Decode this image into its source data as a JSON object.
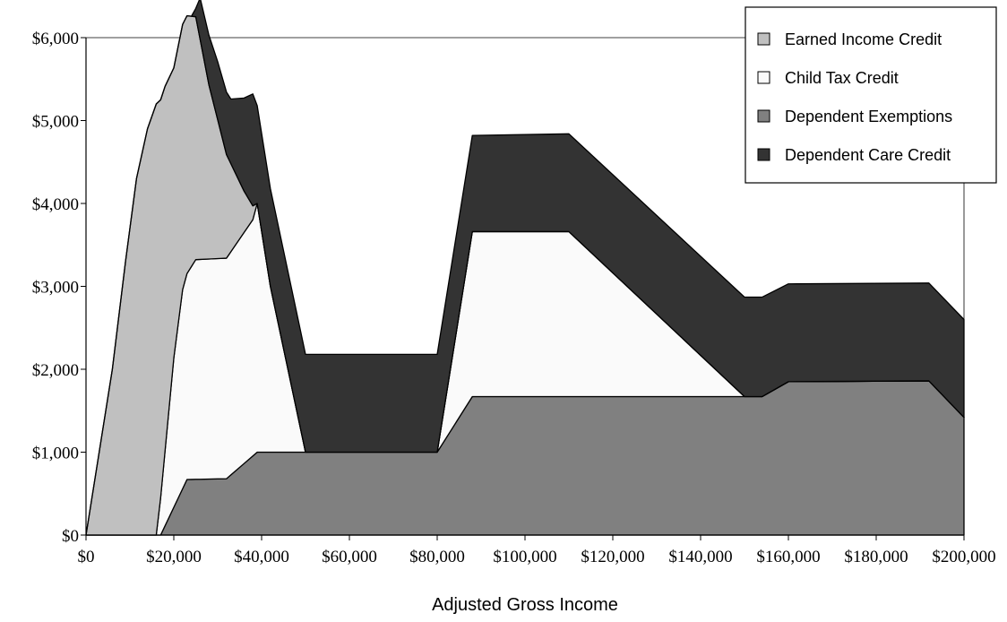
{
  "chart_data": {
    "type": "area",
    "stacking": "stacked",
    "title": "",
    "xlabel": "Adjusted Gross Income",
    "ylabel": "",
    "xlim": [
      0,
      200000
    ],
    "ylim": [
      0,
      6000
    ],
    "x_ticks": [
      0,
      20000,
      40000,
      60000,
      80000,
      100000,
      120000,
      140000,
      160000,
      180000,
      200000
    ],
    "x_tick_labels": [
      "$0",
      "$20,000",
      "$40,000",
      "$60,000",
      "$80,000",
      "$100,000",
      "$120,000",
      "$140,000",
      "$160,000",
      "$180,000",
      "$200,000"
    ],
    "y_ticks": [
      0,
      1000,
      2000,
      3000,
      4000,
      5000,
      6000
    ],
    "y_tick_labels": [
      "$0",
      "$1,000",
      "$2,000",
      "$3,000",
      "$4,000",
      "$5,000",
      "$6,000"
    ],
    "grid": false,
    "legend_position": "top-right",
    "series": [
      {
        "name": "Dependent Exemptions",
        "color": "#808080",
        "points": [
          [
            0,
            0
          ],
          [
            17000,
            0
          ],
          [
            23000,
            670
          ],
          [
            32000,
            680
          ],
          [
            39000,
            1000
          ],
          [
            80000,
            1000
          ],
          [
            88000,
            1670
          ],
          [
            110000,
            1670
          ],
          [
            150000,
            1670
          ],
          [
            154000,
            1670
          ],
          [
            160000,
            1850
          ],
          [
            192000,
            1860
          ],
          [
            200000,
            1420
          ],
          [
            200000,
            0
          ]
        ]
      },
      {
        "name": "Child Tax Credit",
        "color": "#fafafa",
        "points": [
          [
            0,
            0
          ],
          [
            12000,
            0
          ],
          [
            16000,
            0
          ],
          [
            18000,
            900
          ],
          [
            20000,
            1800
          ],
          [
            22000,
            2400
          ],
          [
            25000,
            2650
          ],
          [
            32000,
            2660
          ],
          [
            38000,
            2850
          ],
          [
            39000,
            3000
          ],
          [
            42000,
            2000
          ],
          [
            46000,
            1000
          ],
          [
            50000,
            0
          ],
          [
            80000,
            0
          ],
          [
            88000,
            1990
          ],
          [
            110000,
            1990
          ],
          [
            150000,
            0
          ],
          [
            200000,
            0
          ]
        ]
      },
      {
        "name": "Earned Income Credit",
        "color": "#c0c0c0",
        "points": [
          [
            0,
            0
          ],
          [
            3000,
            1000
          ],
          [
            6000,
            2000
          ],
          [
            9000,
            3300
          ],
          [
            11500,
            4300
          ],
          [
            14000,
            4900
          ],
          [
            16000,
            5200
          ],
          [
            18000,
            4400
          ],
          [
            20000,
            3500
          ],
          [
            22000,
            3200
          ],
          [
            25000,
            2930
          ],
          [
            28000,
            2100
          ],
          [
            32000,
            1250
          ],
          [
            36000,
            500
          ],
          [
            39000,
            0
          ],
          [
            200000,
            0
          ]
        ]
      },
      {
        "name": "Dependent Care Credit",
        "color": "#333333",
        "points": [
          [
            0,
            0
          ],
          [
            24000,
            0
          ],
          [
            25000,
            100
          ],
          [
            26000,
            500
          ],
          [
            30000,
            700
          ],
          [
            33000,
            780
          ],
          [
            38000,
            1350
          ],
          [
            39000,
            1180
          ],
          [
            44000,
            1180
          ],
          [
            80000,
            1180
          ],
          [
            88000,
            1160
          ],
          [
            110000,
            1180
          ],
          [
            150000,
            1200
          ],
          [
            154000,
            1200
          ],
          [
            160000,
            1180
          ],
          [
            192000,
            1180
          ],
          [
            200000,
            1180
          ],
          [
            200000,
            0
          ]
        ]
      }
    ],
    "legend": [
      {
        "label": "Earned Income Credit",
        "color": "#c0c0c0"
      },
      {
        "label": "Child Tax Credit",
        "color": "#fafafa"
      },
      {
        "label": "Dependent Exemptions",
        "color": "#808080"
      },
      {
        "label": "Dependent Care Credit",
        "color": "#333333"
      }
    ]
  }
}
